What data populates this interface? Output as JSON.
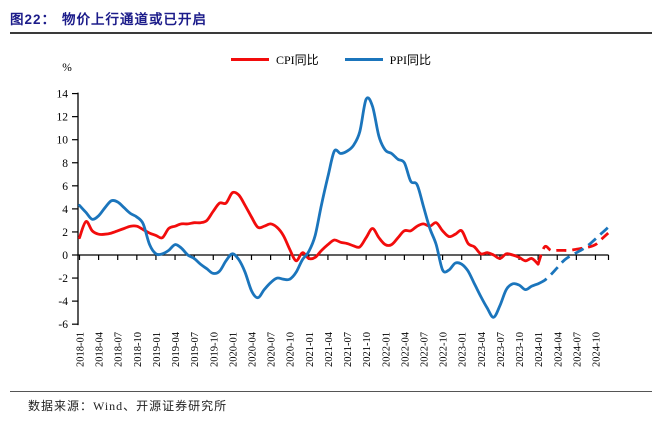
{
  "page": {
    "title_prefix": "图22：",
    "title": "物价上行通道或已开启",
    "source": "数据来源：Wind、开源证券研究所"
  },
  "chart_data": {
    "type": "line",
    "title": "物价上行通道或已开启",
    "ylabel": "%",
    "ylim": [
      -6,
      14
    ],
    "y_ticks": [
      14,
      12,
      10,
      8,
      6,
      4,
      2,
      0,
      -2,
      -4,
      -6
    ],
    "grid": false,
    "legend_position": "top",
    "x_unit": "month",
    "x_range": [
      "2018-01",
      "2024-12"
    ],
    "x_tick_labels": [
      "2018-01",
      "2018-04",
      "2018-07",
      "2018-10",
      "2019-01",
      "2019-04",
      "2019-07",
      "2019-10",
      "2020-01",
      "2020-04",
      "2020-07",
      "2020-10",
      "2021-01",
      "2021-04",
      "2021-07",
      "2021-10",
      "2022-01",
      "2022-04",
      "2022-07",
      "2022-10",
      "2023-01",
      "2023-04",
      "2023-07",
      "2023-10",
      "2024-01",
      "2024-04",
      "2024-07",
      "2024-10"
    ],
    "series": [
      {
        "name": "CPI同比",
        "color": "#f20c0c",
        "actual_style": "solid",
        "forecast_style": "dashed",
        "actual_start": "2018-01",
        "actual": [
          1.5,
          2.9,
          2.1,
          1.8,
          1.8,
          1.9,
          2.1,
          2.3,
          2.5,
          2.5,
          2.2,
          1.9,
          1.7,
          1.5,
          2.3,
          2.5,
          2.7,
          2.7,
          2.8,
          2.8,
          3.0,
          3.8,
          4.5,
          4.5,
          5.4,
          5.2,
          4.3,
          3.3,
          2.4,
          2.5,
          2.7,
          2.4,
          1.7,
          0.5,
          -0.5,
          0.2,
          -0.3,
          -0.2,
          0.4,
          0.9,
          1.3,
          1.1,
          1.0,
          0.8,
          0.7,
          1.5,
          2.3,
          1.5,
          0.9,
          0.9,
          1.5,
          2.1,
          2.1,
          2.5,
          2.7,
          2.5,
          2.8,
          2.1,
          1.6,
          1.8,
          2.1,
          1.0,
          0.7,
          0.1,
          0.2,
          0.0,
          -0.3,
          0.1,
          0.0,
          -0.2,
          -0.5,
          -0.3,
          -0.8
        ],
        "forecast_start": "2024-02",
        "forecast": [
          0.7,
          0.4,
          0.4,
          0.4,
          0.4,
          0.5,
          0.6,
          0.7,
          0.9,
          1.4,
          1.9
        ]
      },
      {
        "name": "PPI同比",
        "color": "#1b75bc",
        "actual_style": "solid",
        "forecast_style": "dashed",
        "actual_start": "2018-01",
        "actual": [
          4.3,
          3.7,
          3.1,
          3.4,
          4.1,
          4.7,
          4.6,
          4.1,
          3.6,
          3.3,
          2.7,
          0.9,
          0.1,
          0.1,
          0.4,
          0.9,
          0.6,
          0.0,
          -0.3,
          -0.8,
          -1.2,
          -1.6,
          -1.4,
          -0.5,
          0.1,
          -0.4,
          -1.5,
          -3.1,
          -3.7,
          -3.0,
          -2.4,
          -2.0,
          -2.1,
          -2.1,
          -1.5,
          -0.4,
          0.3,
          1.7,
          4.4,
          6.8,
          9.0,
          8.8,
          9.0,
          9.5,
          10.7,
          13.5,
          12.9,
          10.3,
          9.1,
          8.8,
          8.3,
          8.0,
          6.4,
          6.1,
          4.2,
          2.3,
          0.9,
          -1.3,
          -1.3,
          -0.7,
          -0.8,
          -1.4,
          -2.5,
          -3.6,
          -4.6,
          -5.4,
          -4.4,
          -3.0,
          -2.5,
          -2.6,
          -3.0,
          -2.7,
          -2.5
        ],
        "forecast_start": "2024-02",
        "forecast": [
          -2.2,
          -1.7,
          -1.1,
          -0.5,
          -0.1,
          0.2,
          0.5,
          0.9,
          1.4,
          1.9,
          2.4
        ]
      }
    ]
  }
}
